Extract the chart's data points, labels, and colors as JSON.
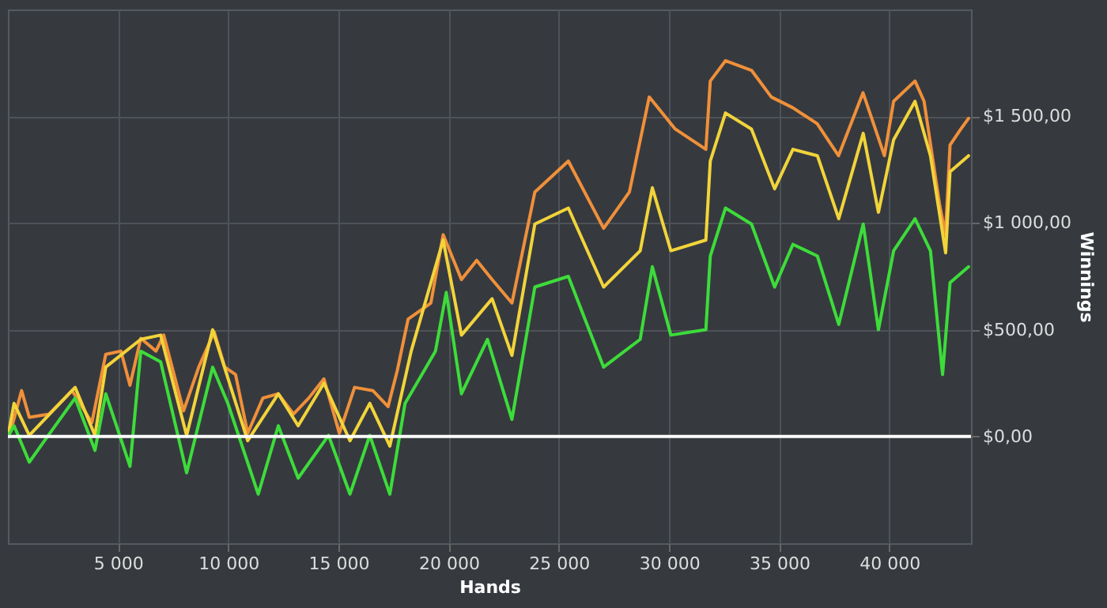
{
  "chart_data": {
    "type": "line",
    "xlabel": "Hands",
    "ylabel": "Winnings",
    "xlim": [
      0,
      43700
    ],
    "ylim": [
      -500,
      2000
    ],
    "xticks": [
      {
        "value": 5000,
        "label": "5 000"
      },
      {
        "value": 10000,
        "label": "10 000"
      },
      {
        "value": 15000,
        "label": "15 000"
      },
      {
        "value": 20000,
        "label": "20 000"
      },
      {
        "value": 25000,
        "label": "25 000"
      },
      {
        "value": 30000,
        "label": "30 000"
      },
      {
        "value": 35000,
        "label": "35 000"
      },
      {
        "value": 40000,
        "label": "40 000"
      }
    ],
    "yticks": [
      {
        "value": 0,
        "label": "$0,00"
      },
      {
        "value": 500,
        "label": "$500,00"
      },
      {
        "value": 1000,
        "label": "$1 000,00"
      },
      {
        "value": 1500,
        "label": "$1 500,00"
      }
    ],
    "grid": true,
    "legend": false,
    "line_style": "solid",
    "marker": "none",
    "ref_lines": [
      {
        "axis": "y",
        "value": 0,
        "label": null,
        "color": "#ffffff"
      }
    ],
    "series": [
      {
        "color": "#f0903a",
        "x": [
          0,
          140,
          620,
          970,
          1870,
          2910,
          3810,
          4440,
          5130,
          5540,
          6030,
          6720,
          7070,
          7970,
          8660,
          9360,
          9840,
          10330,
          10880,
          11570,
          12270,
          12960,
          13650,
          14340,
          15040,
          15730,
          16560,
          17250,
          17670,
          18160,
          19190,
          19750,
          20580,
          21270,
          21970,
          22870,
          23910,
          25430,
          27030,
          28200,
          29100,
          30280,
          31670,
          31870,
          32560,
          33740,
          34640,
          35610,
          36720,
          37690,
          38800,
          39770,
          40190,
          41160,
          41570,
          42270,
          42540,
          42750,
          43240,
          43590
        ],
        "values": [
          0,
          30,
          215,
          90,
          105,
          215,
          65,
          385,
          400,
          240,
          460,
          400,
          475,
          120,
          325,
          490,
          325,
          290,
          15,
          180,
          200,
          105,
          180,
          270,
          15,
          230,
          215,
          140,
          310,
          550,
          625,
          945,
          735,
          825,
          735,
          625,
          1145,
          1290,
          975,
          1145,
          1590,
          1440,
          1345,
          1665,
          1760,
          1715,
          1590,
          1540,
          1465,
          1315,
          1610,
          1315,
          1570,
          1665,
          1570,
          1090,
          945,
          1365,
          1440,
          1490
        ]
      },
      {
        "color": "#f2d43a",
        "x": [
          0,
          280,
          970,
          3050,
          3950,
          4440,
          6030,
          6930,
          8110,
          9290,
          10880,
          12270,
          13170,
          14340,
          15520,
          16420,
          17330,
          18300,
          19750,
          20580,
          21970,
          22870,
          23910,
          25430,
          27030,
          28690,
          29240,
          30080,
          31670,
          31870,
          32560,
          33740,
          34790,
          35620,
          36730,
          37700,
          38810,
          39500,
          40190,
          41160,
          41860,
          42550,
          42750,
          43590
        ],
        "values": [
          0,
          155,
          5,
          230,
          5,
          325,
          455,
          475,
          5,
          500,
          -20,
          200,
          50,
          250,
          -20,
          155,
          -45,
          400,
          920,
          475,
          645,
          380,
          995,
          1070,
          700,
          870,
          1165,
          870,
          920,
          1290,
          1515,
          1440,
          1160,
          1345,
          1315,
          1020,
          1420,
          1050,
          1390,
          1570,
          1315,
          860,
          1240,
          1315
        ]
      },
      {
        "color": "#3ddc3a",
        "x": [
          0,
          280,
          970,
          1660,
          3050,
          3950,
          4440,
          5540,
          6030,
          6930,
          8110,
          9290,
          9980,
          11360,
          12270,
          13170,
          14550,
          15520,
          16420,
          17330,
          18020,
          19400,
          19890,
          20580,
          21760,
          22870,
          23910,
          25430,
          27030,
          28690,
          29240,
          30080,
          31670,
          31870,
          32560,
          33740,
          34790,
          35620,
          36730,
          37700,
          38810,
          39500,
          40190,
          41160,
          41860,
          42410,
          42750,
          43590
        ],
        "values": [
          0,
          50,
          -120,
          -20,
          180,
          -65,
          200,
          -140,
          400,
          350,
          -170,
          325,
          155,
          -270,
          50,
          -195,
          5,
          -270,
          5,
          -270,
          155,
          400,
          675,
          200,
          455,
          80,
          700,
          750,
          325,
          455,
          795,
          475,
          500,
          845,
          1070,
          995,
          700,
          900,
          845,
          525,
          995,
          500,
          870,
          1020,
          870,
          290,
          720,
          795
        ]
      }
    ]
  }
}
